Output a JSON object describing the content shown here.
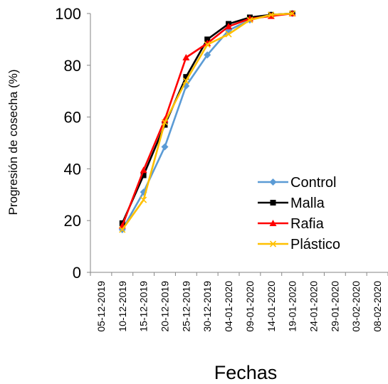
{
  "chart_data": {
    "type": "line",
    "title": "",
    "xlabel": "Fechas",
    "ylabel": "Progresión de cosecha (%)",
    "ylim": [
      0,
      100
    ],
    "yticks": [
      0,
      20,
      40,
      60,
      80,
      100
    ],
    "x_ticks": [
      "05-12-2019",
      "10-12-2019",
      "15-12-2019",
      "20-12-2019",
      "25-12-2019",
      "30-12-2019",
      "04-01-2020",
      "09-01-2020",
      "14-01-2020",
      "19-01-2020",
      "24-01-2020",
      "29-01-2020",
      "03-02-2020",
      "08-02-2020"
    ],
    "x": [
      "10-12-2019",
      "15-12-2019",
      "20-12-2019",
      "25-12-2019",
      "30-12-2019",
      "04-01-2020",
      "09-01-2020",
      "14-01-2020",
      "19-01-2020"
    ],
    "grid": false,
    "legend_position": "right",
    "series": [
      {
        "name": "Control",
        "color": "#5B9BD5",
        "marker": "diamond",
        "values": [
          16.5,
          31,
          48.5,
          72,
          84,
          93.5,
          97.5,
          99.5,
          100
        ]
      },
      {
        "name": "Malla",
        "color": "#000000",
        "marker": "square",
        "values": [
          19,
          37.5,
          57,
          75.5,
          90,
          96,
          98.5,
          99.5,
          100
        ]
      },
      {
        "name": "Rafia",
        "color": "#FF0000",
        "marker": "triangle",
        "values": [
          18,
          39.5,
          59,
          83,
          88.5,
          95,
          98,
          99,
          100
        ]
      },
      {
        "name": "Plástico",
        "color": "#FFC000",
        "marker": "x",
        "values": [
          16.5,
          28,
          58,
          74,
          88,
          92,
          97.5,
          99.5,
          100
        ]
      }
    ]
  }
}
